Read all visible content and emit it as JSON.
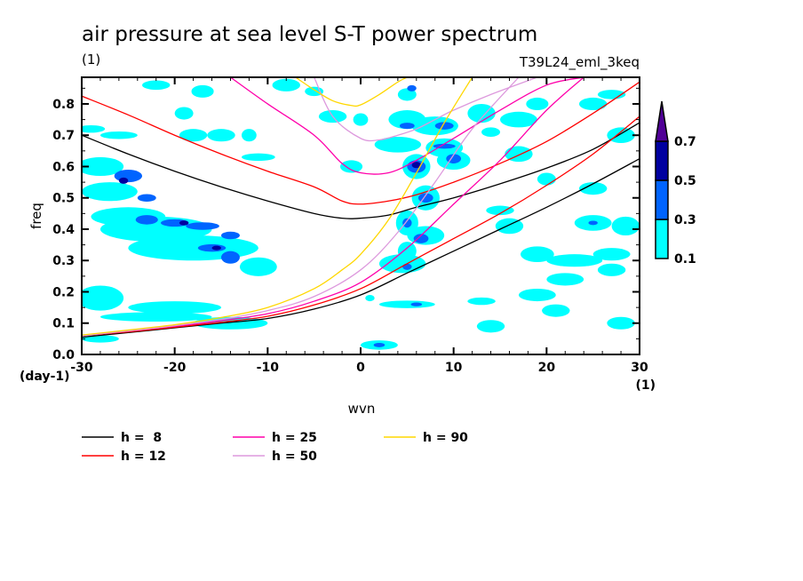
{
  "chart_data": {
    "type": "heatmap",
    "title": "air pressure at sea level S-T power spectrum",
    "subtitle_left": "(1)",
    "subtitle_right": "T39L24_eml_3keq",
    "xlabel": "wvn",
    "ylabel": "freq",
    "x_unit": "(1)",
    "y_unit": "(day-1)",
    "xlim": [
      -30,
      30
    ],
    "ylim": [
      0,
      0.885
    ],
    "x_ticks": [
      -30,
      -20,
      -10,
      0,
      10,
      20,
      30
    ],
    "x_tick_labels": [
      "-30",
      "-20",
      "-10",
      "0",
      "10",
      "20",
      "30"
    ],
    "y_ticks": [
      0.0,
      0.1,
      0.2,
      0.3,
      0.4,
      0.5,
      0.6,
      0.7,
      0.8
    ],
    "y_tick_labels": [
      "0.0",
      "0.1",
      "0.2",
      "0.3",
      "0.4",
      "0.5",
      "0.6",
      "0.7",
      "0.8"
    ],
    "colorbar": {
      "levels": [
        0.1,
        0.3,
        0.5,
        0.7
      ],
      "level_labels": [
        "0.1",
        "0.3",
        "0.5",
        "0.7"
      ],
      "colors": [
        "#00ffff",
        "#0064ff",
        "#0000a0",
        "#500096"
      ],
      "extend": "max"
    },
    "contour_blobs": [
      {
        "x": -29,
        "y": 0.72,
        "level": 0,
        "rx": 1.5,
        "ry": 0.012
      },
      {
        "x": -26,
        "y": 0.7,
        "level": 0,
        "rx": 2,
        "ry": 0.012
      },
      {
        "x": -28,
        "y": 0.6,
        "level": 0,
        "rx": 2.5,
        "ry": 0.03
      },
      {
        "x": -25,
        "y": 0.57,
        "level": 1,
        "rx": 1.5,
        "ry": 0.02
      },
      {
        "x": -25.5,
        "y": 0.555,
        "level": 2,
        "rx": 0.5,
        "ry": 0.01
      },
      {
        "x": -27,
        "y": 0.52,
        "level": 0,
        "rx": 3,
        "ry": 0.03
      },
      {
        "x": -23,
        "y": 0.5,
        "level": 1,
        "rx": 1,
        "ry": 0.012
      },
      {
        "x": -25,
        "y": 0.44,
        "level": 0,
        "rx": 4,
        "ry": 0.03
      },
      {
        "x": -23,
        "y": 0.43,
        "level": 1,
        "rx": 1.2,
        "ry": 0.015
      },
      {
        "x": -22,
        "y": 0.4,
        "level": 0,
        "rx": 6,
        "ry": 0.04
      },
      {
        "x": -20,
        "y": 0.42,
        "level": 1,
        "rx": 1.5,
        "ry": 0.012
      },
      {
        "x": -19,
        "y": 0.42,
        "level": 2,
        "rx": 0.5,
        "ry": 0.008
      },
      {
        "x": -17,
        "y": 0.41,
        "level": 1,
        "rx": 1.8,
        "ry": 0.012
      },
      {
        "x": -14,
        "y": 0.38,
        "level": 1,
        "rx": 1,
        "ry": 0.012
      },
      {
        "x": -18,
        "y": 0.34,
        "level": 0,
        "rx": 7,
        "ry": 0.04
      },
      {
        "x": -16,
        "y": 0.34,
        "level": 1,
        "rx": 1.5,
        "ry": 0.012
      },
      {
        "x": -15.5,
        "y": 0.34,
        "level": 2,
        "rx": 0.5,
        "ry": 0.007
      },
      {
        "x": -14,
        "y": 0.31,
        "level": 1,
        "rx": 1,
        "ry": 0.02
      },
      {
        "x": -11,
        "y": 0.28,
        "level": 0,
        "rx": 2,
        "ry": 0.03
      },
      {
        "x": -28,
        "y": 0.18,
        "level": 0,
        "rx": 2.5,
        "ry": 0.04
      },
      {
        "x": -20,
        "y": 0.15,
        "level": 0,
        "rx": 5,
        "ry": 0.02
      },
      {
        "x": -22,
        "y": 0.12,
        "level": 0,
        "rx": 6,
        "ry": 0.015
      },
      {
        "x": -14,
        "y": 0.1,
        "level": 0,
        "rx": 4,
        "ry": 0.02
      },
      {
        "x": -28,
        "y": 0.05,
        "level": 0,
        "rx": 2,
        "ry": 0.012
      },
      {
        "x": -22,
        "y": 0.86,
        "level": 0,
        "rx": 1.5,
        "ry": 0.015
      },
      {
        "x": -17,
        "y": 0.84,
        "level": 0,
        "rx": 1.2,
        "ry": 0.02
      },
      {
        "x": -8,
        "y": 0.86,
        "level": 0,
        "rx": 1.5,
        "ry": 0.02
      },
      {
        "x": -19,
        "y": 0.77,
        "level": 0,
        "rx": 1,
        "ry": 0.02
      },
      {
        "x": -18,
        "y": 0.7,
        "level": 0,
        "rx": 1.5,
        "ry": 0.02
      },
      {
        "x": -15,
        "y": 0.7,
        "level": 0,
        "rx": 1.5,
        "ry": 0.02
      },
      {
        "x": -12,
        "y": 0.7,
        "level": 0,
        "rx": 0.8,
        "ry": 0.02
      },
      {
        "x": -11,
        "y": 0.63,
        "level": 0,
        "rx": 1.8,
        "ry": 0.012
      },
      {
        "x": -5,
        "y": 0.84,
        "level": 0,
        "rx": 1,
        "ry": 0.015
      },
      {
        "x": -3,
        "y": 0.76,
        "level": 0,
        "rx": 1.5,
        "ry": 0.02
      },
      {
        "x": -1,
        "y": 0.6,
        "level": 0,
        "rx": 1.2,
        "ry": 0.02
      },
      {
        "x": 0,
        "y": 0.75,
        "level": 0,
        "rx": 0.8,
        "ry": 0.02
      },
      {
        "x": 5,
        "y": 0.83,
        "level": 0,
        "rx": 1,
        "ry": 0.02
      },
      {
        "x": 5.5,
        "y": 0.85,
        "level": 1,
        "rx": 0.5,
        "ry": 0.01
      },
      {
        "x": 5,
        "y": 0.75,
        "level": 0,
        "rx": 2,
        "ry": 0.03
      },
      {
        "x": 5,
        "y": 0.73,
        "level": 1,
        "rx": 0.8,
        "ry": 0.01
      },
      {
        "x": 8,
        "y": 0.73,
        "level": 0,
        "rx": 2.5,
        "ry": 0.03
      },
      {
        "x": 9,
        "y": 0.73,
        "level": 1,
        "rx": 1,
        "ry": 0.012
      },
      {
        "x": 4,
        "y": 0.67,
        "level": 0,
        "rx": 2.5,
        "ry": 0.025
      },
      {
        "x": 9,
        "y": 0.66,
        "level": 0,
        "rx": 2,
        "ry": 0.03
      },
      {
        "x": 9,
        "y": 0.665,
        "level": 1,
        "rx": 1.2,
        "ry": 0.008
      },
      {
        "x": 6,
        "y": 0.6,
        "level": 0,
        "rx": 1.5,
        "ry": 0.04
      },
      {
        "x": 6,
        "y": 0.6,
        "level": 1,
        "rx": 1,
        "ry": 0.02
      },
      {
        "x": 6,
        "y": 0.605,
        "level": 2,
        "rx": 0.5,
        "ry": 0.01
      },
      {
        "x": 10,
        "y": 0.62,
        "level": 0,
        "rx": 1.8,
        "ry": 0.03
      },
      {
        "x": 10,
        "y": 0.625,
        "level": 1,
        "rx": 0.8,
        "ry": 0.015
      },
      {
        "x": 7,
        "y": 0.5,
        "level": 0,
        "rx": 1.5,
        "ry": 0.04
      },
      {
        "x": 7,
        "y": 0.5,
        "level": 1,
        "rx": 0.8,
        "ry": 0.015
      },
      {
        "x": 5,
        "y": 0.42,
        "level": 0,
        "rx": 1.2,
        "ry": 0.04
      },
      {
        "x": 5,
        "y": 0.42,
        "level": 1,
        "rx": 0.5,
        "ry": 0.015
      },
      {
        "x": 7,
        "y": 0.38,
        "level": 0,
        "rx": 2,
        "ry": 0.03
      },
      {
        "x": 6.5,
        "y": 0.37,
        "level": 1,
        "rx": 0.8,
        "ry": 0.015
      },
      {
        "x": 5,
        "y": 0.33,
        "level": 0,
        "rx": 1,
        "ry": 0.03
      },
      {
        "x": 4.5,
        "y": 0.29,
        "level": 0,
        "rx": 2.5,
        "ry": 0.03
      },
      {
        "x": 5,
        "y": 0.28,
        "level": 1,
        "rx": 0.5,
        "ry": 0.01
      },
      {
        "x": 5,
        "y": 0.16,
        "level": 0,
        "rx": 3,
        "ry": 0.012
      },
      {
        "x": 6,
        "y": 0.16,
        "level": 1,
        "rx": 0.6,
        "ry": 0.006
      },
      {
        "x": 2,
        "y": 0.03,
        "level": 0,
        "rx": 2,
        "ry": 0.015
      },
      {
        "x": 2,
        "y": 0.03,
        "level": 1,
        "rx": 0.6,
        "ry": 0.007
      },
      {
        "x": 1,
        "y": 0.18,
        "level": 0,
        "rx": 0.5,
        "ry": 0.01
      },
      {
        "x": 13,
        "y": 0.77,
        "level": 0,
        "rx": 1.5,
        "ry": 0.03
      },
      {
        "x": 14,
        "y": 0.71,
        "level": 0,
        "rx": 1,
        "ry": 0.015
      },
      {
        "x": 17,
        "y": 0.75,
        "level": 0,
        "rx": 2,
        "ry": 0.025
      },
      {
        "x": 17,
        "y": 0.64,
        "level": 0,
        "rx": 1.5,
        "ry": 0.025
      },
      {
        "x": 19,
        "y": 0.8,
        "level": 0,
        "rx": 1.2,
        "ry": 0.02
      },
      {
        "x": 25,
        "y": 0.8,
        "level": 0,
        "rx": 1.5,
        "ry": 0.02
      },
      {
        "x": 27,
        "y": 0.83,
        "level": 0,
        "rx": 1.5,
        "ry": 0.015
      },
      {
        "x": 28,
        "y": 0.7,
        "level": 0,
        "rx": 1.5,
        "ry": 0.025
      },
      {
        "x": 20,
        "y": 0.56,
        "level": 0,
        "rx": 1,
        "ry": 0.02
      },
      {
        "x": 25,
        "y": 0.53,
        "level": 0,
        "rx": 1.5,
        "ry": 0.02
      },
      {
        "x": 15,
        "y": 0.46,
        "level": 0,
        "rx": 1.5,
        "ry": 0.015
      },
      {
        "x": 16,
        "y": 0.41,
        "level": 0,
        "rx": 1.5,
        "ry": 0.025
      },
      {
        "x": 25,
        "y": 0.42,
        "level": 0,
        "rx": 2,
        "ry": 0.025
      },
      {
        "x": 25,
        "y": 0.42,
        "level": 1,
        "rx": 0.5,
        "ry": 0.007
      },
      {
        "x": 28.5,
        "y": 0.41,
        "level": 0,
        "rx": 1.5,
        "ry": 0.03
      },
      {
        "x": 27,
        "y": 0.32,
        "level": 0,
        "rx": 2,
        "ry": 0.02
      },
      {
        "x": 23,
        "y": 0.3,
        "level": 0,
        "rx": 3,
        "ry": 0.02
      },
      {
        "x": 19,
        "y": 0.32,
        "level": 0,
        "rx": 1.8,
        "ry": 0.025
      },
      {
        "x": 22,
        "y": 0.24,
        "level": 0,
        "rx": 2,
        "ry": 0.02
      },
      {
        "x": 27,
        "y": 0.27,
        "level": 0,
        "rx": 1.5,
        "ry": 0.02
      },
      {
        "x": 19,
        "y": 0.19,
        "level": 0,
        "rx": 2,
        "ry": 0.02
      },
      {
        "x": 21,
        "y": 0.14,
        "level": 0,
        "rx": 1.5,
        "ry": 0.02
      },
      {
        "x": 28,
        "y": 0.1,
        "level": 0,
        "rx": 1.5,
        "ry": 0.02
      },
      {
        "x": 13,
        "y": 0.17,
        "level": 0,
        "rx": 1.5,
        "ry": 0.012
      },
      {
        "x": 14,
        "y": 0.09,
        "level": 0,
        "rx": 1.5,
        "ry": 0.02
      }
    ],
    "series": [
      {
        "name": "h =  8",
        "color": "#000000",
        "branch": "upper",
        "x": [
          -30,
          -25,
          -20,
          -15,
          -10,
          -5,
          -2,
          0,
          3,
          6,
          10,
          15,
          20,
          25,
          30
        ],
        "y": [
          0.7,
          0.64,
          0.585,
          0.535,
          0.49,
          0.45,
          0.435,
          0.435,
          0.445,
          0.47,
          0.5,
          0.545,
          0.595,
          0.655,
          0.74
        ]
      },
      {
        "name": "h =  8",
        "color": "#000000",
        "branch": "lower",
        "x": [
          -30,
          -25,
          -20,
          -15,
          -10,
          -5,
          0,
          5,
          10,
          15,
          20,
          25,
          30
        ],
        "y": [
          0.055,
          0.07,
          0.085,
          0.1,
          0.115,
          0.145,
          0.19,
          0.26,
          0.33,
          0.4,
          0.47,
          0.545,
          0.625
        ]
      },
      {
        "name": "h = 12",
        "color": "#ff0000",
        "branch": "upper",
        "x": [
          -30,
          -25,
          -20,
          -15,
          -10,
          -5,
          -2,
          0,
          3,
          6,
          10,
          15,
          20,
          25,
          30
        ],
        "y": [
          0.825,
          0.765,
          0.7,
          0.64,
          0.585,
          0.535,
          0.49,
          0.48,
          0.49,
          0.51,
          0.55,
          0.61,
          0.68,
          0.77,
          0.87
        ]
      },
      {
        "name": "h = 12",
        "color": "#ff0000",
        "branch": "lower",
        "x": [
          -30,
          -25,
          -20,
          -15,
          -10,
          -5,
          0,
          5,
          10,
          15,
          20,
          25,
          30
        ],
        "y": [
          0.06,
          0.072,
          0.087,
          0.103,
          0.122,
          0.158,
          0.21,
          0.29,
          0.37,
          0.45,
          0.54,
          0.64,
          0.76
        ]
      },
      {
        "name": "h = 25",
        "color": "#ff00aa",
        "branch": "upper",
        "x": [
          -14,
          -10,
          -5,
          -2,
          0,
          3,
          6,
          10,
          15,
          20,
          24
        ],
        "y": [
          0.885,
          0.8,
          0.7,
          0.61,
          0.58,
          0.58,
          0.62,
          0.69,
          0.78,
          0.86,
          0.885
        ]
      },
      {
        "name": "h = 25",
        "color": "#ff00aa",
        "branch": "lower",
        "x": [
          -30,
          -25,
          -20,
          -15,
          -10,
          -5,
          0,
          5,
          10,
          15,
          20,
          24
        ],
        "y": [
          0.06,
          0.075,
          0.09,
          0.108,
          0.13,
          0.17,
          0.23,
          0.34,
          0.48,
          0.62,
          0.78,
          0.885
        ]
      },
      {
        "name": "h = 50",
        "color": "#dd99dd",
        "branch": "upper",
        "x": [
          -5,
          -3,
          0,
          2,
          4,
          6,
          8,
          10,
          14,
          19
        ],
        "y": [
          0.885,
          0.76,
          0.69,
          0.685,
          0.7,
          0.72,
          0.75,
          0.78,
          0.83,
          0.885
        ]
      },
      {
        "name": "h = 50",
        "color": "#dd99dd",
        "branch": "lower",
        "x": [
          -30,
          -25,
          -20,
          -15,
          -10,
          -5,
          0,
          4,
          8,
          12,
          17
        ],
        "y": [
          0.06,
          0.075,
          0.092,
          0.112,
          0.14,
          0.185,
          0.27,
          0.39,
          0.55,
          0.72,
          0.885
        ]
      },
      {
        "name": "h = 90",
        "color": "#ffd700",
        "branch": "upper",
        "x": [
          -7,
          -5,
          -3,
          -1,
          0,
          2,
          4,
          5
        ],
        "y": [
          0.885,
          0.845,
          0.81,
          0.795,
          0.797,
          0.83,
          0.87,
          0.885
        ]
      },
      {
        "name": "h = 90",
        "color": "#ffd700",
        "branch": "lower",
        "x": [
          -30,
          -25,
          -20,
          -15,
          -10,
          -5,
          -2,
          0,
          3,
          6,
          9,
          12
        ],
        "y": [
          0.062,
          0.078,
          0.095,
          0.118,
          0.15,
          0.21,
          0.27,
          0.32,
          0.43,
          0.58,
          0.74,
          0.885
        ]
      }
    ],
    "legend": [
      {
        "label": "h =  8",
        "color": "#000000"
      },
      {
        "label": "h = 12",
        "color": "#ff0000"
      },
      {
        "label": "h = 25",
        "color": "#ff00aa"
      },
      {
        "label": "h = 50",
        "color": "#dd99dd"
      },
      {
        "label": "h = 90",
        "color": "#ffd700"
      }
    ],
    "legend_position": "bottom",
    "grid": false
  }
}
